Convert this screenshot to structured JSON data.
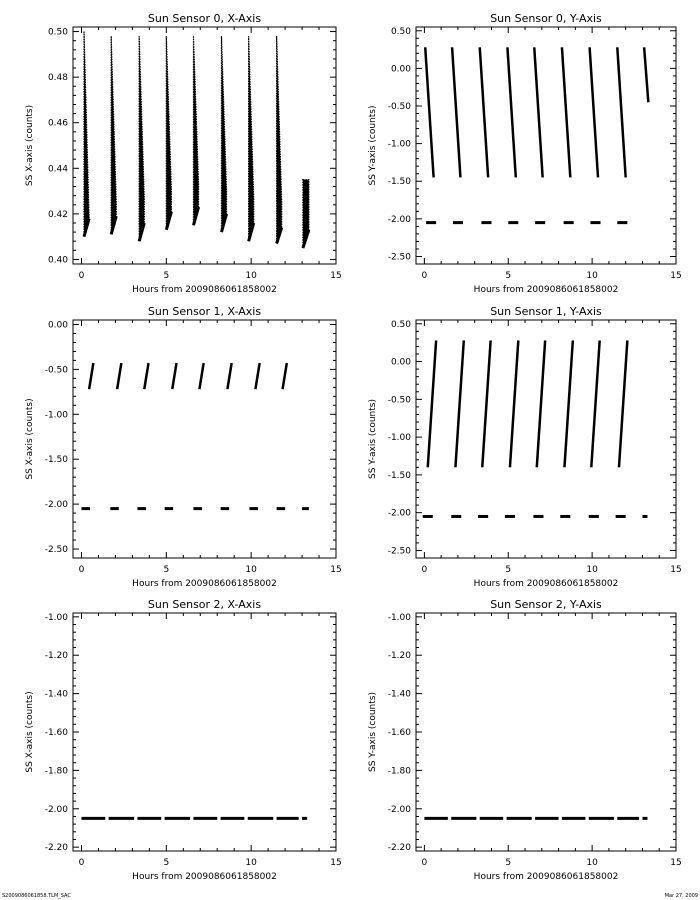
{
  "footer": {
    "left": "S2009086061858.TLM_SAC",
    "right": "Mar 27, 2009"
  },
  "chart_data": [
    {
      "type": "scatter",
      "title": "Sun Sensor 0, X-Axis",
      "xlabel": "Hours from 2009086061858002",
      "ylabel": "SS X-axis (counts)",
      "xlim": [
        -0.5,
        15
      ],
      "ylim": [
        0.398,
        0.502
      ],
      "xticks": [
        0,
        5,
        10,
        15
      ],
      "yticks": [
        0.4,
        0.42,
        0.44,
        0.46,
        0.48,
        0.5
      ],
      "ytick_labels": [
        "0.40",
        "0.42",
        "0.44",
        "0.46",
        "0.48",
        "0.50"
      ],
      "segments": [
        {
          "x": [
            0.15,
            0.45
          ],
          "y_bottom": [
            0.41,
            0.418
          ],
          "y_top": [
            0.5,
            0.418
          ]
        },
        {
          "x": [
            1.75,
            2.05
          ],
          "y_bottom": [
            0.411,
            0.419
          ],
          "y_top": [
            0.498,
            0.425
          ]
        },
        {
          "x": [
            3.4,
            3.7
          ],
          "y_bottom": [
            0.408,
            0.416
          ],
          "y_top": [
            0.498,
            0.427
          ]
        },
        {
          "x": [
            5.0,
            5.3
          ],
          "y_bottom": [
            0.413,
            0.421
          ],
          "y_top": [
            0.498,
            0.43
          ]
        },
        {
          "x": [
            6.6,
            6.9
          ],
          "y_bottom": [
            0.415,
            0.423
          ],
          "y_top": [
            0.498,
            0.433
          ]
        },
        {
          "x": [
            8.25,
            8.55
          ],
          "y_bottom": [
            0.412,
            0.42
          ],
          "y_top": [
            0.498,
            0.43
          ]
        },
        {
          "x": [
            9.85,
            10.15
          ],
          "y_bottom": [
            0.408,
            0.416
          ],
          "y_top": [
            0.498,
            0.427
          ]
        },
        {
          "x": [
            11.5,
            11.8
          ],
          "y_bottom": [
            0.407,
            0.414
          ],
          "y_top": [
            0.498,
            0.425
          ]
        },
        {
          "x": [
            13.05,
            13.4
          ],
          "y_bottom": [
            0.405,
            0.413
          ],
          "y_top": [
            0.435,
            0.435
          ]
        }
      ],
      "dashes": []
    },
    {
      "type": "scatter",
      "title": "Sun Sensor 0, Y-Axis",
      "xlabel": "Hours from 2009086061858002",
      "ylabel": "SS Y-axis (counts)",
      "xlim": [
        -0.5,
        15
      ],
      "ylim": [
        -2.6,
        0.55
      ],
      "xticks": [
        0,
        5,
        10,
        15
      ],
      "yticks": [
        0.5,
        0.0,
        -0.5,
        -1.0,
        -1.5,
        -2.0,
        -2.5
      ],
      "ytick_labels": [
        "0.50",
        "0.00",
        "-0.50",
        "-1.00",
        "-1.50",
        "-2.00",
        "-2.50"
      ],
      "lines": [
        {
          "x": [
            0.05,
            0.55
          ],
          "y": [
            0.28,
            -1.45
          ]
        },
        {
          "x": [
            1.65,
            2.15
          ],
          "y": [
            0.28,
            -1.45
          ]
        },
        {
          "x": [
            3.3,
            3.8
          ],
          "y": [
            0.28,
            -1.45
          ]
        },
        {
          "x": [
            4.95,
            5.45
          ],
          "y": [
            0.28,
            -1.45
          ]
        },
        {
          "x": [
            6.55,
            7.05
          ],
          "y": [
            0.28,
            -1.45
          ]
        },
        {
          "x": [
            8.2,
            8.7
          ],
          "y": [
            0.28,
            -1.45
          ]
        },
        {
          "x": [
            9.85,
            10.35
          ],
          "y": [
            0.28,
            -1.45
          ]
        },
        {
          "x": [
            11.5,
            12.0
          ],
          "y": [
            0.28,
            -1.45
          ]
        },
        {
          "x": [
            13.1,
            13.35
          ],
          "y": [
            0.28,
            -0.45
          ]
        }
      ],
      "dashes": [
        {
          "x": [
            0.1,
            0.7
          ],
          "y": -2.05
        },
        {
          "x": [
            1.7,
            2.3
          ],
          "y": -2.05
        },
        {
          "x": [
            3.4,
            4.0
          ],
          "y": -2.05
        },
        {
          "x": [
            5.0,
            5.6
          ],
          "y": -2.05
        },
        {
          "x": [
            6.6,
            7.2
          ],
          "y": -2.05
        },
        {
          "x": [
            8.3,
            8.9
          ],
          "y": -2.05
        },
        {
          "x": [
            9.9,
            10.5
          ],
          "y": -2.05
        },
        {
          "x": [
            11.5,
            12.1
          ],
          "y": -2.05
        }
      ]
    },
    {
      "type": "scatter",
      "title": "Sun Sensor 1, X-Axis",
      "xlabel": "Hours from 2009086061858002",
      "ylabel": "SS X-axis (counts)",
      "xlim": [
        -0.5,
        15
      ],
      "ylim": [
        -2.6,
        0.05
      ],
      "xticks": [
        0,
        5,
        10,
        15
      ],
      "yticks": [
        0.0,
        -0.5,
        -1.0,
        -1.5,
        -2.0,
        -2.5
      ],
      "ytick_labels": [
        "0.00",
        "-0.50",
        "-1.00",
        "-1.50",
        "-2.00",
        "-2.50"
      ],
      "lines": [
        {
          "x": [
            0.45,
            0.7
          ],
          "y": [
            -0.72,
            -0.43
          ]
        },
        {
          "x": [
            2.1,
            2.35
          ],
          "y": [
            -0.72,
            -0.43
          ]
        },
        {
          "x": [
            3.7,
            3.95
          ],
          "y": [
            -0.72,
            -0.43
          ]
        },
        {
          "x": [
            5.35,
            5.6
          ],
          "y": [
            -0.72,
            -0.43
          ]
        },
        {
          "x": [
            6.95,
            7.2
          ],
          "y": [
            -0.72,
            -0.43
          ]
        },
        {
          "x": [
            8.6,
            8.85
          ],
          "y": [
            -0.72,
            -0.43
          ]
        },
        {
          "x": [
            10.25,
            10.5
          ],
          "y": [
            -0.72,
            -0.43
          ]
        },
        {
          "x": [
            11.85,
            12.1
          ],
          "y": [
            -0.72,
            -0.43
          ]
        }
      ],
      "dashes": [
        {
          "x": [
            0.0,
            0.5
          ],
          "y": -2.05
        },
        {
          "x": [
            1.7,
            2.2
          ],
          "y": -2.05
        },
        {
          "x": [
            3.3,
            3.8
          ],
          "y": -2.05
        },
        {
          "x": [
            4.9,
            5.4
          ],
          "y": -2.05
        },
        {
          "x": [
            6.6,
            7.1
          ],
          "y": -2.05
        },
        {
          "x": [
            8.2,
            8.7
          ],
          "y": -2.05
        },
        {
          "x": [
            9.9,
            10.4
          ],
          "y": -2.05
        },
        {
          "x": [
            11.5,
            12.0
          ],
          "y": -2.05
        },
        {
          "x": [
            13.0,
            13.4
          ],
          "y": -2.05
        }
      ]
    },
    {
      "type": "scatter",
      "title": "Sun Sensor 1, Y-Axis",
      "xlabel": "Hours from 2009086061858002",
      "ylabel": "SS Y-axis (counts)",
      "xlim": [
        -0.5,
        15
      ],
      "ylim": [
        -2.6,
        0.55
      ],
      "xticks": [
        0,
        5,
        10,
        15
      ],
      "yticks": [
        0.5,
        0.0,
        -0.5,
        -1.0,
        -1.5,
        -2.0,
        -2.5
      ],
      "ytick_labels": [
        "0.50",
        "0.00",
        "-0.50",
        "-1.00",
        "-1.50",
        "-2.00",
        "-2.50"
      ],
      "lines": [
        {
          "x": [
            0.2,
            0.7
          ],
          "y": [
            -1.4,
            0.28
          ]
        },
        {
          "x": [
            1.85,
            2.35
          ],
          "y": [
            -1.4,
            0.28
          ]
        },
        {
          "x": [
            3.45,
            3.95
          ],
          "y": [
            -1.4,
            0.28
          ]
        },
        {
          "x": [
            5.1,
            5.6
          ],
          "y": [
            -1.4,
            0.28
          ]
        },
        {
          "x": [
            6.7,
            7.2
          ],
          "y": [
            -1.4,
            0.28
          ]
        },
        {
          "x": [
            8.35,
            8.85
          ],
          "y": [
            -1.4,
            0.28
          ]
        },
        {
          "x": [
            9.95,
            10.45
          ],
          "y": [
            -1.4,
            0.28
          ]
        },
        {
          "x": [
            11.6,
            12.1
          ],
          "y": [
            -1.4,
            0.28
          ]
        }
      ],
      "dashes": [
        {
          "x": [
            -0.1,
            0.5
          ],
          "y": -2.05
        },
        {
          "x": [
            1.6,
            2.2
          ],
          "y": -2.05
        },
        {
          "x": [
            3.2,
            3.8
          ],
          "y": -2.05
        },
        {
          "x": [
            4.8,
            5.4
          ],
          "y": -2.05
        },
        {
          "x": [
            6.5,
            7.1
          ],
          "y": -2.05
        },
        {
          "x": [
            8.1,
            8.7
          ],
          "y": -2.05
        },
        {
          "x": [
            9.8,
            10.4
          ],
          "y": -2.05
        },
        {
          "x": [
            11.4,
            12.0
          ],
          "y": -2.05
        },
        {
          "x": [
            13.0,
            13.3
          ],
          "y": -2.05
        }
      ]
    },
    {
      "type": "scatter",
      "title": "Sun Sensor 2, X-Axis",
      "xlabel": "Hours from 2009086061858002",
      "ylabel": "SS X-axis (counts)",
      "xlim": [
        -0.5,
        15
      ],
      "ylim": [
        -2.22,
        -0.98
      ],
      "xticks": [
        0,
        5,
        10,
        15
      ],
      "yticks": [
        -1.0,
        -1.2,
        -1.4,
        -1.6,
        -1.8,
        -2.0,
        -2.2
      ],
      "ytick_labels": [
        "-1.00",
        "-1.20",
        "-1.40",
        "-1.60",
        "-1.80",
        "-2.00",
        "-2.20"
      ],
      "lines": [],
      "dashes": [
        {
          "x": [
            0.0,
            1.4
          ],
          "y": -2.05
        },
        {
          "x": [
            1.6,
            3.1
          ],
          "y": -2.05
        },
        {
          "x": [
            3.3,
            4.7
          ],
          "y": -2.05
        },
        {
          "x": [
            4.9,
            6.4
          ],
          "y": -2.05
        },
        {
          "x": [
            6.6,
            8.0
          ],
          "y": -2.05
        },
        {
          "x": [
            8.2,
            9.6
          ],
          "y": -2.05
        },
        {
          "x": [
            9.8,
            11.3
          ],
          "y": -2.05
        },
        {
          "x": [
            11.5,
            12.8
          ],
          "y": -2.05
        },
        {
          "x": [
            13.0,
            13.3
          ],
          "y": -2.05
        }
      ]
    },
    {
      "type": "scatter",
      "title": "Sun Sensor 2, Y-Axis",
      "xlabel": "Hours from 2009086061858002",
      "ylabel": "SS Y-axis (counts)",
      "xlim": [
        -0.5,
        15
      ],
      "ylim": [
        -2.22,
        -0.98
      ],
      "xticks": [
        0,
        5,
        10,
        15
      ],
      "yticks": [
        -1.0,
        -1.2,
        -1.4,
        -1.6,
        -1.8,
        -2.0,
        -2.2
      ],
      "ytick_labels": [
        "-1.00",
        "-1.20",
        "-1.40",
        "-1.60",
        "-1.80",
        "-2.00",
        "-2.20"
      ],
      "lines": [],
      "dashes": [
        {
          "x": [
            0.0,
            1.4
          ],
          "y": -2.05
        },
        {
          "x": [
            1.6,
            3.1
          ],
          "y": -2.05
        },
        {
          "x": [
            3.3,
            4.7
          ],
          "y": -2.05
        },
        {
          "x": [
            4.9,
            6.4
          ],
          "y": -2.05
        },
        {
          "x": [
            6.6,
            8.0
          ],
          "y": -2.05
        },
        {
          "x": [
            8.2,
            9.6
          ],
          "y": -2.05
        },
        {
          "x": [
            9.8,
            11.3
          ],
          "y": -2.05
        },
        {
          "x": [
            11.5,
            12.8
          ],
          "y": -2.05
        },
        {
          "x": [
            13.0,
            13.3
          ],
          "y": -2.05
        }
      ]
    }
  ]
}
